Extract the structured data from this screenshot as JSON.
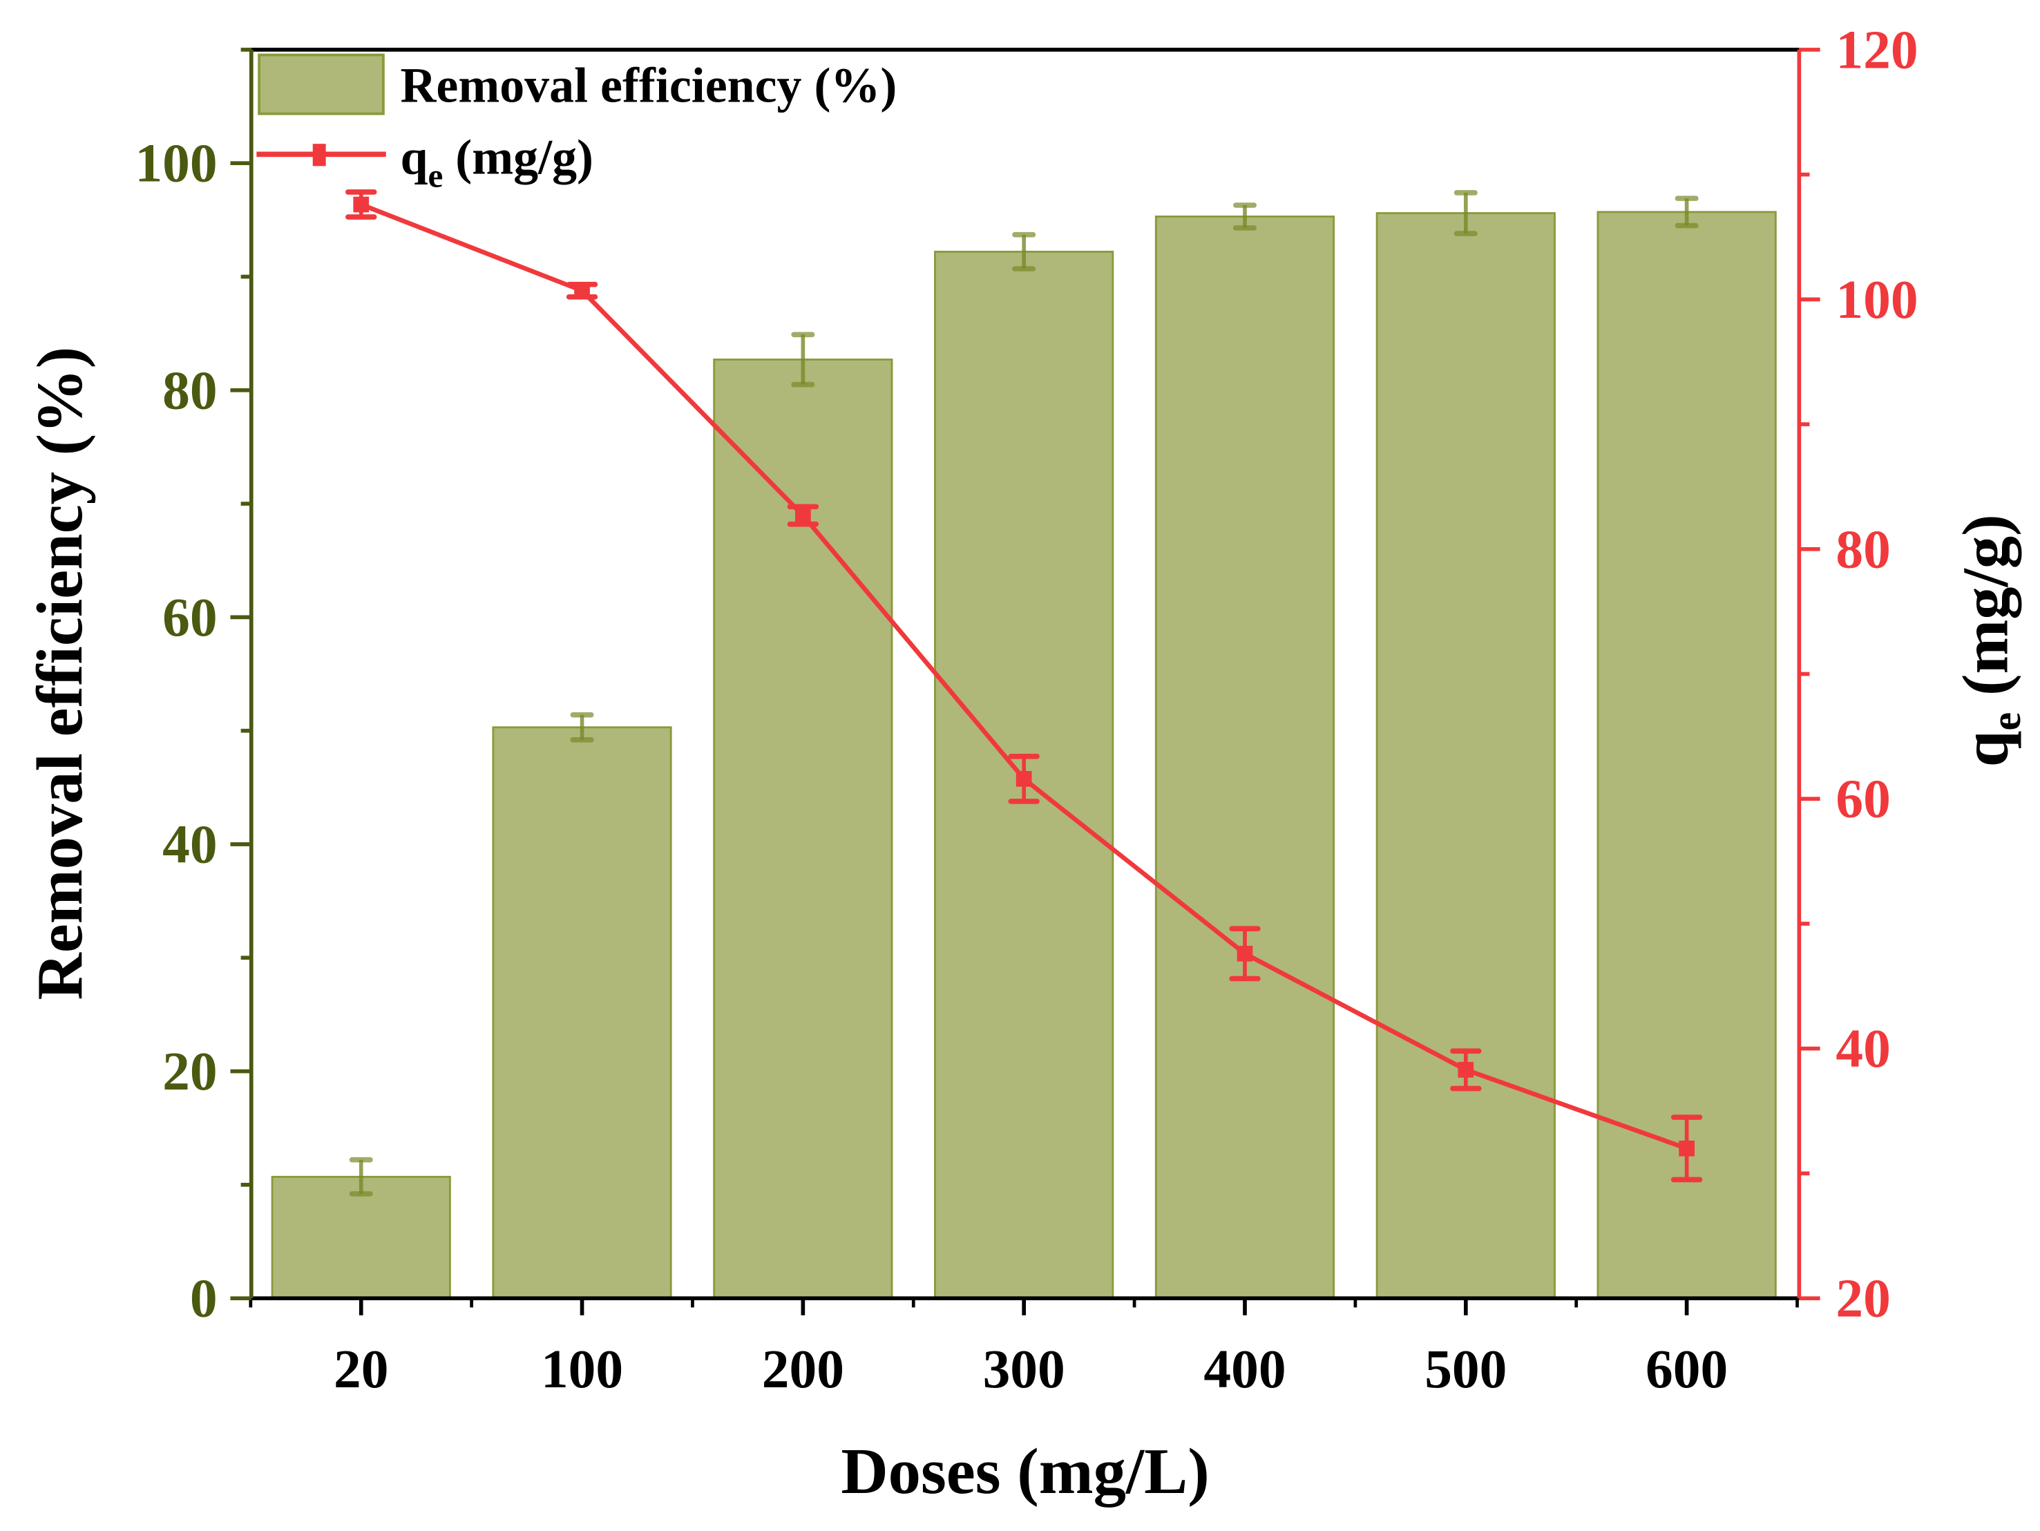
{
  "chart_data": {
    "type": "bar+line",
    "categories": [
      "20",
      "100",
      "200",
      "300",
      "400",
      "500",
      "600"
    ],
    "xlabel": "Doses (mg/L)",
    "y_left": {
      "label": "Removal efficiency (%)",
      "lim": [
        0,
        110
      ],
      "ticks": [
        0,
        20,
        40,
        60,
        80,
        100
      ],
      "color": "#4a5a10"
    },
    "y_right": {
      "label_main": "q",
      "label_sub": "e",
      "label_rest": " (mg/g)",
      "lim": [
        20,
        120
      ],
      "ticks": [
        20,
        40,
        60,
        80,
        100,
        120
      ],
      "color": "#f0393c"
    },
    "series": [
      {
        "name": "Removal efficiency (%)",
        "kind": "bar",
        "axis": "left",
        "color": "#afb878",
        "edge": "#8a9a3a",
        "values": [
          10.7,
          50.3,
          82.7,
          92.2,
          95.3,
          95.6,
          95.7
        ],
        "errors": [
          1.5,
          1.1,
          2.2,
          1.5,
          1.0,
          1.8,
          1.2
        ]
      },
      {
        "name": "qe (mg/g)",
        "name_main": "q",
        "name_sub": "e",
        "name_rest": " (mg/g)",
        "kind": "line",
        "axis": "right",
        "color": "#f0393c",
        "values": [
          107.6,
          100.7,
          82.7,
          61.6,
          47.6,
          38.3,
          32.0
        ],
        "errors": [
          1.0,
          0.5,
          0.7,
          1.8,
          2.0,
          1.5,
          2.5
        ]
      }
    ],
    "legend": "top-left",
    "grid": false
  }
}
